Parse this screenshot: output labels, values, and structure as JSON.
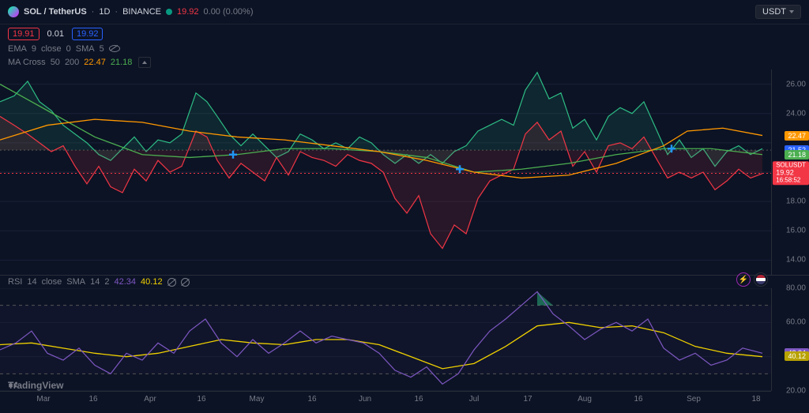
{
  "header": {
    "symbol_pair": "SOL / TetherUS",
    "interval": "1D",
    "exchange": "BINANCE",
    "last_price": "19.92",
    "change": "0.00 (0.00%)",
    "o": "19.91",
    "h": "0.01",
    "c": "19.92",
    "quote_btn": "USDT"
  },
  "ema_line": {
    "label": "EMA",
    "p1": "9",
    "p2": "close",
    "p3": "0",
    "sma_label": "SMA",
    "p4": "5"
  },
  "ma_cross": {
    "label": "MA Cross",
    "p1": "50",
    "p2": "200",
    "v1": "22.47",
    "v2": "21.18"
  },
  "price_chart": {
    "ylim": [
      13,
      27
    ],
    "ylabels": [
      14.0,
      16.0,
      18.0,
      22.47,
      21.52,
      21.18,
      24.0,
      26.0
    ],
    "current_badge": {
      "symbol": "SOLUSDT",
      "price": "19.92",
      "time": "16:58:52"
    },
    "price_line": {
      "color": "#2dbd85",
      "fill": "rgba(45,189,133,0.12)",
      "points": [
        [
          0,
          24.8
        ],
        [
          18,
          25.2
        ],
        [
          35,
          26.2
        ],
        [
          50,
          24.8
        ],
        [
          65,
          24.2
        ],
        [
          80,
          23.2
        ],
        [
          95,
          22.6
        ],
        [
          110,
          22.0
        ],
        [
          125,
          21.2
        ],
        [
          140,
          20.8
        ],
        [
          155,
          21.6
        ],
        [
          170,
          22.4
        ],
        [
          185,
          21.4
        ],
        [
          200,
          22.2
        ],
        [
          215,
          22.0
        ],
        [
          230,
          22.6
        ],
        [
          248,
          25.4
        ],
        [
          262,
          24.8
        ],
        [
          275,
          23.8
        ],
        [
          290,
          22.6
        ],
        [
          305,
          21.8
        ],
        [
          320,
          22.6
        ],
        [
          335,
          21.8
        ],
        [
          350,
          21.0
        ],
        [
          365,
          21.4
        ],
        [
          380,
          22.6
        ],
        [
          395,
          22.2
        ],
        [
          410,
          21.6
        ],
        [
          425,
          22.0
        ],
        [
          440,
          21.6
        ],
        [
          455,
          22.4
        ],
        [
          470,
          22.0
        ],
        [
          485,
          21.2
        ],
        [
          500,
          20.6
        ],
        [
          515,
          21.2
        ],
        [
          530,
          20.6
        ],
        [
          545,
          21.2
        ],
        [
          560,
          20.6
        ],
        [
          575,
          21.4
        ],
        [
          590,
          21.8
        ],
        [
          605,
          22.8
        ],
        [
          620,
          23.2
        ],
        [
          635,
          23.6
        ],
        [
          650,
          23.2
        ],
        [
          665,
          25.6
        ],
        [
          680,
          26.8
        ],
        [
          695,
          25.0
        ],
        [
          710,
          25.4
        ],
        [
          725,
          23.0
        ],
        [
          740,
          23.6
        ],
        [
          755,
          22.2
        ],
        [
          770,
          23.8
        ],
        [
          785,
          24.4
        ],
        [
          800,
          24.0
        ],
        [
          815,
          24.8
        ],
        [
          830,
          23.0
        ],
        [
          845,
          21.2
        ],
        [
          860,
          22.2
        ],
        [
          875,
          21.0
        ],
        [
          890,
          21.6
        ],
        [
          905,
          20.4
        ],
        [
          920,
          21.4
        ],
        [
          935,
          21.8
        ],
        [
          950,
          21.2
        ],
        [
          965,
          21.6
        ]
      ]
    },
    "secondary_line": {
      "color": "#f23645",
      "fill": "rgba(242,54,69,0.12)",
      "points": [
        [
          0,
          23.8
        ],
        [
          18,
          23.2
        ],
        [
          35,
          22.6
        ],
        [
          50,
          22.0
        ],
        [
          65,
          21.4
        ],
        [
          80,
          21.8
        ],
        [
          95,
          20.4
        ],
        [
          110,
          19.2
        ],
        [
          125,
          20.4
        ],
        [
          140,
          19.0
        ],
        [
          155,
          18.6
        ],
        [
          170,
          20.2
        ],
        [
          185,
          19.4
        ],
        [
          200,
          20.8
        ],
        [
          215,
          20.0
        ],
        [
          230,
          20.4
        ],
        [
          248,
          22.8
        ],
        [
          262,
          22.4
        ],
        [
          275,
          20.8
        ],
        [
          290,
          19.6
        ],
        [
          305,
          20.6
        ],
        [
          320,
          20.0
        ],
        [
          335,
          19.4
        ],
        [
          350,
          21.0
        ],
        [
          365,
          19.8
        ],
        [
          380,
          21.4
        ],
        [
          395,
          21.0
        ],
        [
          410,
          20.8
        ],
        [
          425,
          20.4
        ],
        [
          440,
          21.2
        ],
        [
          455,
          20.8
        ],
        [
          470,
          20.6
        ],
        [
          485,
          20.0
        ],
        [
          500,
          18.2
        ],
        [
          515,
          17.2
        ],
        [
          530,
          18.4
        ],
        [
          545,
          15.8
        ],
        [
          560,
          14.8
        ],
        [
          575,
          16.4
        ],
        [
          590,
          15.8
        ],
        [
          605,
          18.2
        ],
        [
          620,
          19.4
        ],
        [
          635,
          19.8
        ],
        [
          650,
          20.2
        ],
        [
          665,
          22.6
        ],
        [
          680,
          23.4
        ],
        [
          695,
          22.2
        ],
        [
          710,
          22.8
        ],
        [
          725,
          20.4
        ],
        [
          740,
          21.4
        ],
        [
          755,
          20.0
        ],
        [
          770,
          21.8
        ],
        [
          785,
          22.0
        ],
        [
          800,
          21.6
        ],
        [
          815,
          22.4
        ],
        [
          830,
          21.0
        ],
        [
          845,
          19.6
        ],
        [
          860,
          20.0
        ],
        [
          875,
          19.6
        ],
        [
          890,
          20.0
        ],
        [
          905,
          18.8
        ],
        [
          920,
          19.4
        ],
        [
          935,
          20.2
        ],
        [
          950,
          19.6
        ],
        [
          965,
          19.9
        ]
      ]
    },
    "ma50": {
      "color": "#4caf50",
      "points": [
        [
          0,
          26.0
        ],
        [
          60,
          24.2
        ],
        [
          120,
          22.4
        ],
        [
          180,
          21.2
        ],
        [
          240,
          21.0
        ],
        [
          300,
          21.2
        ],
        [
          360,
          21.6
        ],
        [
          420,
          21.6
        ],
        [
          480,
          21.4
        ],
        [
          540,
          21.0
        ],
        [
          600,
          20.0
        ],
        [
          660,
          20.2
        ],
        [
          720,
          20.6
        ],
        [
          780,
          21.2
        ],
        [
          840,
          21.6
        ],
        [
          900,
          21.6
        ],
        [
          965,
          21.2
        ]
      ]
    },
    "ma200": {
      "color": "#ff9800",
      "points": [
        [
          0,
          22.2
        ],
        [
          60,
          23.2
        ],
        [
          120,
          23.6
        ],
        [
          180,
          23.4
        ],
        [
          240,
          22.8
        ],
        [
          300,
          22.4
        ],
        [
          360,
          22.2
        ],
        [
          420,
          21.8
        ],
        [
          480,
          21.4
        ],
        [
          540,
          20.8
        ],
        [
          600,
          20.0
        ],
        [
          660,
          19.6
        ],
        [
          720,
          19.8
        ],
        [
          780,
          20.6
        ],
        [
          840,
          21.8
        ],
        [
          870,
          22.8
        ],
        [
          915,
          23.0
        ],
        [
          965,
          22.5
        ]
      ]
    },
    "crosses": [
      [
        295,
        21.2
      ],
      [
        582,
        20.2
      ],
      [
        850,
        21.6
      ]
    ],
    "cross_color": "#2196f3",
    "baseline_y": 21.5,
    "dotted_current": 19.92
  },
  "rsi": {
    "label": "RSI",
    "p1": "14",
    "p2": "close",
    "sma": "SMA",
    "p3": "14",
    "p4": "2",
    "v1": "42.34",
    "v2": "40.12",
    "ylim": [
      20,
      80
    ],
    "ylabels": [
      20.0,
      40.0,
      60.0,
      80.0
    ],
    "bands": [
      30,
      70
    ],
    "line": {
      "color": "#7e57c2",
      "points": [
        [
          0,
          44
        ],
        [
          20,
          48
        ],
        [
          40,
          55
        ],
        [
          60,
          42
        ],
        [
          80,
          38
        ],
        [
          100,
          45
        ],
        [
          120,
          35
        ],
        [
          140,
          30
        ],
        [
          160,
          42
        ],
        [
          180,
          38
        ],
        [
          200,
          48
        ],
        [
          220,
          42
        ],
        [
          240,
          55
        ],
        [
          260,
          62
        ],
        [
          280,
          48
        ],
        [
          300,
          40
        ],
        [
          320,
          50
        ],
        [
          340,
          42
        ],
        [
          360,
          48
        ],
        [
          380,
          55
        ],
        [
          400,
          48
        ],
        [
          420,
          52
        ],
        [
          440,
          50
        ],
        [
          460,
          48
        ],
        [
          480,
          42
        ],
        [
          500,
          32
        ],
        [
          520,
          28
        ],
        [
          540,
          34
        ],
        [
          560,
          24
        ],
        [
          580,
          30
        ],
        [
          600,
          44
        ],
        [
          620,
          55
        ],
        [
          640,
          62
        ],
        [
          660,
          70
        ],
        [
          680,
          78
        ],
        [
          700,
          65
        ],
        [
          720,
          58
        ],
        [
          740,
          50
        ],
        [
          760,
          56
        ],
        [
          780,
          60
        ],
        [
          800,
          55
        ],
        [
          820,
          62
        ],
        [
          840,
          45
        ],
        [
          860,
          38
        ],
        [
          880,
          42
        ],
        [
          900,
          35
        ],
        [
          920,
          38
        ],
        [
          940,
          45
        ],
        [
          965,
          42
        ]
      ]
    },
    "sma_line": {
      "color": "#f0d000",
      "points": [
        [
          0,
          47
        ],
        [
          40,
          48
        ],
        [
          80,
          45
        ],
        [
          120,
          42
        ],
        [
          160,
          40
        ],
        [
          200,
          42
        ],
        [
          240,
          46
        ],
        [
          280,
          50
        ],
        [
          320,
          48
        ],
        [
          360,
          47
        ],
        [
          400,
          50
        ],
        [
          440,
          50
        ],
        [
          480,
          47
        ],
        [
          520,
          40
        ],
        [
          560,
          33
        ],
        [
          600,
          36
        ],
        [
          640,
          46
        ],
        [
          680,
          58
        ],
        [
          720,
          60
        ],
        [
          760,
          57
        ],
        [
          800,
          58
        ],
        [
          840,
          54
        ],
        [
          880,
          46
        ],
        [
          920,
          42
        ],
        [
          965,
          40
        ]
      ]
    },
    "badges": [
      {
        "v": "42.34",
        "c": "#7e57c2"
      },
      {
        "v": "40.12",
        "c": "#b8a200"
      }
    ]
  },
  "x_axis": {
    "labels": [
      [
        "Mar",
        55
      ],
      [
        "16",
        118
      ],
      [
        "Apr",
        190
      ],
      [
        "16",
        255
      ],
      [
        "May",
        325
      ],
      [
        "16",
        395
      ],
      [
        "Jun",
        462
      ],
      [
        "16",
        530
      ],
      [
        "Jul",
        600
      ],
      [
        "17",
        668
      ],
      [
        "Aug",
        740
      ],
      [
        "16",
        808
      ],
      [
        "Sep",
        878
      ],
      [
        "18",
        957
      ]
    ]
  },
  "footer": "TradingView",
  "colors": {
    "bg": "#0c1325",
    "grid": "#2a2e39"
  }
}
